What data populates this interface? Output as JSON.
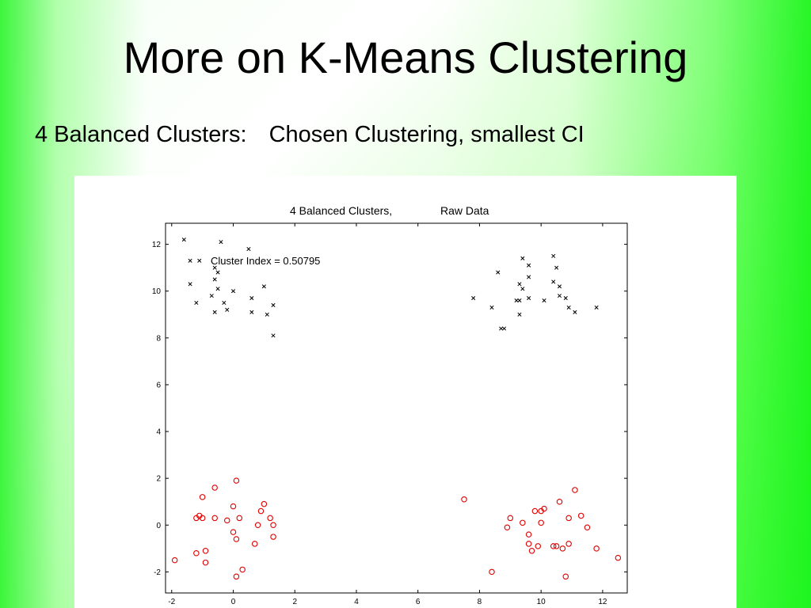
{
  "slide": {
    "title": "More on K-Means Clustering",
    "subtitle_left": "4 Balanced Clusters:",
    "subtitle_right": "Chosen Clustering, smallest CI"
  },
  "colors": {
    "accent_green": "#1ff51f",
    "cluster_black": "#000000",
    "cluster_red": "#e00000"
  },
  "chart_data": {
    "type": "scatter",
    "title_left": "4 Balanced Clusters,",
    "title_right": "Raw Data",
    "annotation": "Cluster Index = 0.50795",
    "xlabel": "",
    "ylabel": "",
    "xlim": [
      -2.2,
      12.8
    ],
    "ylim": [
      -2.9,
      12.9
    ],
    "xticks": [
      -2,
      0,
      2,
      4,
      6,
      8,
      10,
      12
    ],
    "yticks": [
      -2,
      0,
      2,
      4,
      6,
      8,
      10,
      12
    ],
    "grid": false,
    "series": [
      {
        "marker": "x",
        "color": "#000000",
        "points": [
          [
            -1.6,
            12.2
          ],
          [
            -0.4,
            12.1
          ],
          [
            0.5,
            11.8
          ],
          [
            -1.4,
            11.3
          ],
          [
            -1.1,
            11.3
          ],
          [
            -0.6,
            11.0
          ],
          [
            -0.5,
            10.8
          ],
          [
            -0.6,
            10.5
          ],
          [
            -1.4,
            10.3
          ],
          [
            1.0,
            10.2
          ],
          [
            -0.5,
            10.1
          ],
          [
            0.0,
            10.0
          ],
          [
            -0.7,
            9.8
          ],
          [
            0.6,
            9.7
          ],
          [
            -1.2,
            9.5
          ],
          [
            -0.3,
            9.5
          ],
          [
            1.3,
            9.4
          ],
          [
            -0.6,
            9.1
          ],
          [
            -0.2,
            9.2
          ],
          [
            0.6,
            9.1
          ],
          [
            1.1,
            9.0
          ],
          [
            1.3,
            8.1
          ],
          [
            9.4,
            11.4
          ],
          [
            10.4,
            11.5
          ],
          [
            9.6,
            11.1
          ],
          [
            10.5,
            11.0
          ],
          [
            8.6,
            10.8
          ],
          [
            9.6,
            10.6
          ],
          [
            10.4,
            10.4
          ],
          [
            9.3,
            10.3
          ],
          [
            9.4,
            10.1
          ],
          [
            10.6,
            10.2
          ],
          [
            10.6,
            9.8
          ],
          [
            7.8,
            9.7
          ],
          [
            9.6,
            9.7
          ],
          [
            10.8,
            9.7
          ],
          [
            9.2,
            9.6
          ],
          [
            9.3,
            9.6
          ],
          [
            10.1,
            9.6
          ],
          [
            8.4,
            9.3
          ],
          [
            10.9,
            9.3
          ],
          [
            11.8,
            9.3
          ],
          [
            11.1,
            9.1
          ],
          [
            9.3,
            9.0
          ],
          [
            8.7,
            8.4
          ],
          [
            8.8,
            8.4
          ]
        ]
      },
      {
        "marker": "o",
        "color": "#e00000",
        "points": [
          [
            0.1,
            1.9
          ],
          [
            -0.6,
            1.6
          ],
          [
            -1.0,
            1.2
          ],
          [
            1.0,
            0.9
          ],
          [
            0.0,
            0.8
          ],
          [
            0.9,
            0.6
          ],
          [
            -1.1,
            0.4
          ],
          [
            -1.0,
            0.3
          ],
          [
            -1.2,
            0.3
          ],
          [
            -0.6,
            0.3
          ],
          [
            1.2,
            0.3
          ],
          [
            0.2,
            0.3
          ],
          [
            -0.2,
            0.2
          ],
          [
            0.8,
            0.0
          ],
          [
            1.3,
            0.0
          ],
          [
            0.0,
            -0.3
          ],
          [
            1.3,
            -0.5
          ],
          [
            0.1,
            -0.6
          ],
          [
            0.7,
            -0.8
          ],
          [
            -0.9,
            -1.1
          ],
          [
            -1.2,
            -1.2
          ],
          [
            -1.9,
            -1.5
          ],
          [
            -0.9,
            -1.6
          ],
          [
            0.3,
            -1.9
          ],
          [
            0.1,
            -2.2
          ],
          [
            7.5,
            1.1
          ],
          [
            11.1,
            1.5
          ],
          [
            10.6,
            1.0
          ],
          [
            10.1,
            0.7
          ],
          [
            9.8,
            0.6
          ],
          [
            10.0,
            0.6
          ],
          [
            11.3,
            0.4
          ],
          [
            9.0,
            0.3
          ],
          [
            10.9,
            0.3
          ],
          [
            9.4,
            0.1
          ],
          [
            10.0,
            0.1
          ],
          [
            11.5,
            -0.1
          ],
          [
            8.9,
            -0.1
          ],
          [
            9.6,
            -0.4
          ],
          [
            9.6,
            -0.8
          ],
          [
            10.4,
            -0.9
          ],
          [
            10.5,
            -0.9
          ],
          [
            10.9,
            -0.8
          ],
          [
            9.9,
            -0.9
          ],
          [
            10.7,
            -1.0
          ],
          [
            11.8,
            -1.0
          ],
          [
            9.7,
            -1.1
          ],
          [
            12.5,
            -1.4
          ],
          [
            8.4,
            -2.0
          ],
          [
            10.8,
            -2.2
          ]
        ]
      }
    ]
  }
}
